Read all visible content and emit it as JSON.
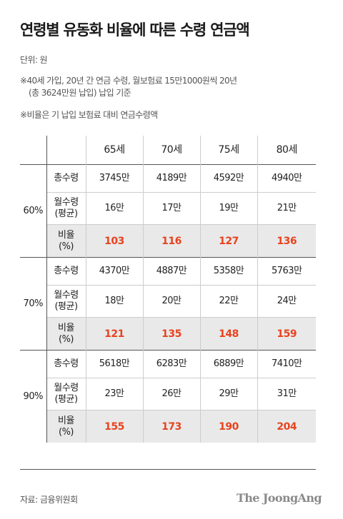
{
  "title": "연령별 유동화 비율에 따른 수령 연금액",
  "unit_note": "단위: 원",
  "notes": [
    "※40세 가입, 20년 간 연금 수령, 월보험료 15만1000원씩 20년",
    "(총 3624만원 납입) 납입 기준",
    "※비율은 기 납입 보험료 대비 연금수령액"
  ],
  "source": "자료: 금융위원회",
  "brand": "The JoongAng",
  "colors": {
    "accent": "#e8431f",
    "shade": "#e9e9e9",
    "rule": "#555555"
  },
  "chart_data": {
    "type": "table",
    "columns": [
      "65세",
      "70세",
      "75세",
      "80세"
    ],
    "row_labels": [
      "총수령",
      "월수령\n(평균)",
      "비율\n(%)"
    ],
    "groups": [
      {
        "name": "60%",
        "rows": [
          [
            "3745만",
            "4189만",
            "4592만",
            "4940만"
          ],
          [
            "16만",
            "17만",
            "19만",
            "21만"
          ],
          [
            "103",
            "116",
            "127",
            "136"
          ]
        ]
      },
      {
        "name": "70%",
        "rows": [
          [
            "4370만",
            "4887만",
            "5358만",
            "5763만"
          ],
          [
            "18만",
            "20만",
            "22만",
            "24만"
          ],
          [
            "121",
            "135",
            "148",
            "159"
          ]
        ]
      },
      {
        "name": "90%",
        "rows": [
          [
            "5618만",
            "6283만",
            "6889만",
            "7410만"
          ],
          [
            "23만",
            "26만",
            "29만",
            "31만"
          ],
          [
            "155",
            "173",
            "190",
            "204"
          ]
        ]
      }
    ]
  }
}
